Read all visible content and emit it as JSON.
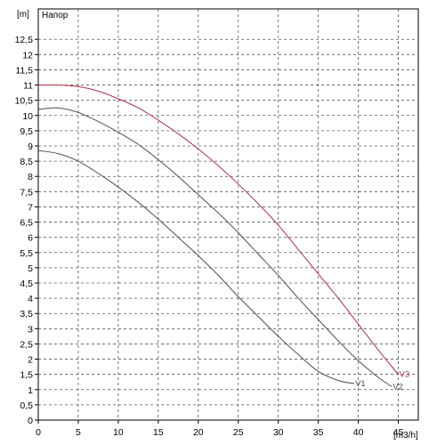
{
  "chart_data": {
    "type": "line",
    "title": "Напор",
    "xlabel": "[m3/h]",
    "ylabel": "[m]",
    "xlim": [
      0,
      47.5
    ],
    "ylim": [
      0,
      13.5
    ],
    "x_ticks": [
      0,
      5,
      10,
      15,
      20,
      25,
      30,
      35,
      40,
      45
    ],
    "x_tick_labels": [
      "0",
      "5",
      "10",
      "15",
      "20",
      "25",
      "30",
      "35",
      "40",
      "45"
    ],
    "y_ticks": [
      0,
      0.5,
      1,
      1.5,
      2,
      2.5,
      3,
      3.5,
      4,
      4.5,
      5,
      5.5,
      6,
      6.5,
      7,
      7.5,
      8,
      8.5,
      9,
      9.5,
      10,
      10.5,
      11,
      11.5,
      12,
      12.5
    ],
    "y_tick_labels": [
      "0",
      "0,5",
      "1",
      "1,5",
      "2",
      "2,5",
      "3",
      "3,5",
      "4",
      "4,5",
      "5",
      "5,5",
      "6",
      "6,5",
      "7",
      "7,5",
      "8",
      "8,5",
      "9",
      "9,5",
      "10",
      "10,5",
      "11",
      "11,5",
      "12",
      "12,5"
    ],
    "grid": true,
    "series": [
      {
        "name": "V1",
        "color": "#5a4a52",
        "x": [
          0,
          2.5,
          5,
          7.5,
          10,
          12.5,
          15,
          17.5,
          20,
          22.5,
          25,
          27.5,
          30,
          32.5,
          35,
          37.5,
          39.5
        ],
        "y": [
          8.85,
          8.75,
          8.5,
          8.1,
          7.65,
          7.15,
          6.6,
          6.0,
          5.4,
          4.75,
          4.05,
          3.4,
          2.75,
          2.15,
          1.6,
          1.3,
          1.2
        ]
      },
      {
        "name": "V2",
        "color": "#5a4a52",
        "x": [
          0,
          2.5,
          5,
          7.5,
          10,
          12.5,
          15,
          17.5,
          20,
          22.5,
          25,
          27.5,
          30,
          32.5,
          35,
          37.5,
          40,
          42.5,
          44.2
        ],
        "y": [
          10.2,
          10.25,
          10.1,
          9.8,
          9.45,
          9.05,
          8.55,
          8.0,
          7.4,
          6.8,
          6.15,
          5.45,
          4.75,
          4.0,
          3.3,
          2.6,
          1.95,
          1.4,
          1.1
        ]
      },
      {
        "name": "V3",
        "color": "#b03045",
        "x": [
          0,
          2.5,
          5,
          7.5,
          10,
          12.5,
          15,
          17.5,
          20,
          22.5,
          25,
          27.5,
          30,
          32.5,
          35,
          37.5,
          40,
          42.5,
          45
        ],
        "y": [
          11.0,
          11.0,
          10.95,
          10.8,
          10.55,
          10.25,
          9.85,
          9.4,
          8.9,
          8.35,
          7.75,
          7.1,
          6.4,
          5.6,
          4.8,
          4.0,
          3.15,
          2.3,
          1.5
        ]
      }
    ]
  }
}
